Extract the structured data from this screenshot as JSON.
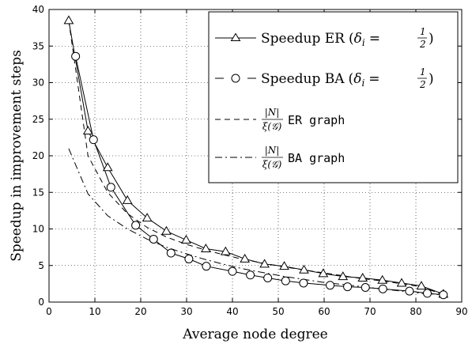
{
  "chart_data": {
    "type": "line",
    "xlabel": "Average node degree",
    "ylabel": "Speedup in improvement steps",
    "xlim": [
      0,
      90
    ],
    "ylim": [
      0,
      40
    ],
    "xticks": [
      "0",
      "10",
      "20",
      "30",
      "40",
      "50",
      "60",
      "70",
      "80",
      "90"
    ],
    "yticks": [
      "0",
      "5",
      "10",
      "15",
      "20",
      "25",
      "30",
      "35",
      "40"
    ],
    "grid": true,
    "legend_position": "top-right",
    "series": [
      {
        "name": "Speedup ER (δi = 1/2)",
        "label_text": "Speedup ER",
        "style": "solid",
        "marker": "triangle",
        "x": [
          4.3,
          8.5,
          12.8,
          17.1,
          21.4,
          25.6,
          29.9,
          34.2,
          38.5,
          42.7,
          47.0,
          51.3,
          55.6,
          59.8,
          64.1,
          68.4,
          72.7,
          76.9,
          81.2,
          86.0
        ],
        "y": [
          38.5,
          23.4,
          18.4,
          13.9,
          11.5,
          9.7,
          8.5,
          7.3,
          6.9,
          5.9,
          5.2,
          4.9,
          4.4,
          3.9,
          3.5,
          3.3,
          3.0,
          2.6,
          2.2,
          1.1
        ]
      },
      {
        "name": "Speedup BA (δi = 1/2)",
        "label_text": "Speedup BA",
        "style": "solid",
        "marker": "circle",
        "x": [
          5.8,
          9.7,
          13.5,
          18.9,
          22.8,
          26.6,
          30.5,
          34.3,
          40.0,
          43.9,
          47.7,
          51.6,
          55.5,
          61.3,
          65.1,
          69.0,
          72.8,
          78.6,
          82.5,
          86.0
        ],
        "y": [
          33.6,
          22.2,
          15.7,
          10.5,
          8.6,
          6.7,
          5.9,
          4.9,
          4.2,
          3.7,
          3.3,
          2.9,
          2.6,
          2.3,
          2.1,
          2.0,
          1.8,
          1.5,
          1.2,
          1.0
        ]
      },
      {
        "name": "|N|/ξ(G) ER graph",
        "label_text": "ER graph",
        "style": "dashed",
        "marker": "none",
        "x": [
          4.3,
          8.5,
          12.8,
          17.1,
          21.4,
          25.6,
          29.9,
          34.2,
          38.5,
          42.7,
          47.0,
          51.3,
          55.6,
          59.8,
          64.1,
          68.4,
          72.7,
          76.9,
          81.2,
          86.0
        ],
        "y": [
          38.5,
          20.0,
          15.0,
          12.1,
          10.2,
          8.9,
          7.9,
          7.1,
          6.4,
          5.8,
          5.3,
          4.8,
          4.4,
          4.0,
          3.6,
          3.2,
          2.9,
          2.5,
          2.1,
          1.0
        ]
      },
      {
        "name": "|N|/ξ(G) BA graph",
        "label_text": "BA graph",
        "style": "dashdot",
        "marker": "none",
        "x": [
          4.3,
          8.5,
          12.8,
          17.1,
          21.4,
          25.6,
          29.9,
          34.2,
          38.5,
          42.7,
          47.0,
          51.3,
          55.6,
          59.8,
          64.1,
          68.4,
          72.7,
          76.9,
          81.2,
          86.0
        ],
        "y": [
          21.0,
          14.8,
          11.8,
          10.0,
          8.6,
          7.5,
          6.6,
          5.8,
          5.1,
          4.5,
          4.0,
          3.5,
          3.1,
          2.7,
          2.4,
          2.1,
          1.8,
          1.5,
          1.2,
          1.0
        ]
      }
    ]
  },
  "legend": {
    "delta_symbol": "δ",
    "delta_sub": "i",
    "equals": "=",
    "half_num": "1",
    "half_den": "2",
    "frac_num": "|N|",
    "frac_den": "ξ(𝒢)"
  }
}
